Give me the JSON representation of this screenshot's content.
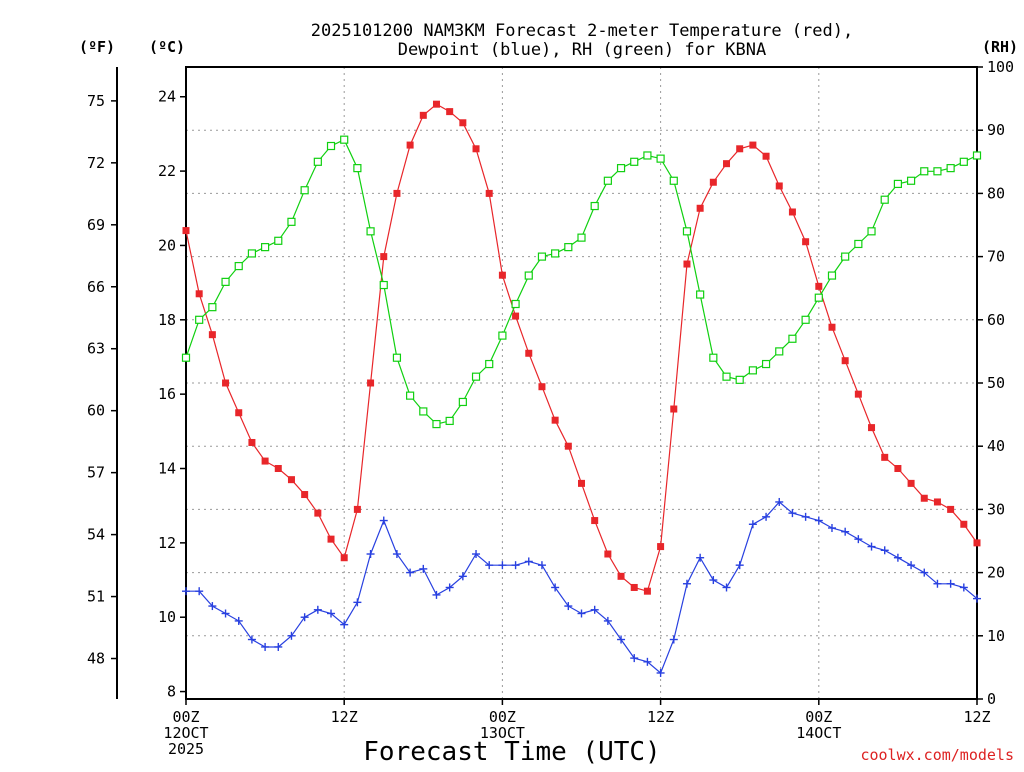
{
  "title": {
    "line1": "2025101200 NAM3KM Forecast 2-meter Temperature (red),",
    "line2": "Dewpoint (blue), RH (green) for KBNA"
  },
  "units": {
    "fahrenheit": "(ºF)",
    "celsius": "(ºC)",
    "rh": "(RH)"
  },
  "x_axis": {
    "title": "Forecast Time (UTC)",
    "ticks": [
      {
        "l1": "00Z",
        "l2": "12OCT",
        "l3": "2025"
      },
      {
        "l1": "12Z",
        "l2": "",
        "l3": ""
      },
      {
        "l1": "00Z",
        "l2": "13OCT",
        "l3": ""
      },
      {
        "l1": "12Z",
        "l2": "",
        "l3": ""
      },
      {
        "l1": "00Z",
        "l2": "14OCT",
        "l3": ""
      },
      {
        "l1": "12Z",
        "l2": "",
        "l3": ""
      }
    ]
  },
  "credit": "coolwx.com/models",
  "colors": {
    "temperature": "#e8262a",
    "dewpoint": "#2840e0",
    "rh": "#10d010"
  },
  "chart_data": {
    "type": "line",
    "x_hours": [
      0,
      1,
      2,
      3,
      4,
      5,
      6,
      7,
      8,
      9,
      10,
      11,
      12,
      13,
      14,
      15,
      16,
      17,
      18,
      19,
      20,
      21,
      22,
      23,
      24,
      25,
      26,
      27,
      28,
      29,
      30,
      31,
      32,
      33,
      34,
      35,
      36,
      37,
      38,
      39,
      40,
      41,
      42,
      43,
      44,
      45,
      46,
      47,
      48,
      49,
      50,
      51,
      52,
      53,
      54,
      55,
      56,
      57,
      58,
      59,
      60
    ],
    "xlim": [
      0,
      60
    ],
    "series": [
      {
        "name": "Temperature",
        "units": "C",
        "axis": "left_celsius",
        "values": [
          20.4,
          18.7,
          17.6,
          16.3,
          15.5,
          14.7,
          14.2,
          14.0,
          13.7,
          13.3,
          12.8,
          12.1,
          11.6,
          12.9,
          16.3,
          19.7,
          21.4,
          22.7,
          23.5,
          23.8,
          23.6,
          23.3,
          22.6,
          21.4,
          19.2,
          18.1,
          17.1,
          16.2,
          15.3,
          14.6,
          13.6,
          12.6,
          11.7,
          11.1,
          10.8,
          10.7,
          11.9,
          15.6,
          19.5,
          21.0,
          21.7,
          22.2,
          22.6,
          22.7,
          22.4,
          21.6,
          20.9,
          20.1,
          18.9,
          17.8,
          16.9,
          16.0,
          15.1,
          14.3,
          14.0,
          13.6,
          13.2,
          13.1,
          12.9,
          12.5,
          12.0
        ]
      },
      {
        "name": "Dewpoint",
        "units": "C",
        "axis": "left_celsius",
        "values": [
          10.7,
          10.7,
          10.3,
          10.1,
          9.9,
          9.4,
          9.2,
          9.2,
          9.5,
          10.0,
          10.2,
          10.1,
          9.8,
          10.4,
          11.7,
          12.6,
          11.7,
          11.2,
          11.3,
          10.6,
          10.8,
          11.1,
          11.7,
          11.4,
          11.4,
          11.4,
          11.5,
          11.4,
          10.8,
          10.3,
          10.1,
          10.2,
          9.9,
          9.4,
          8.9,
          8.8,
          8.5,
          9.4,
          10.9,
          11.6,
          11.0,
          10.8,
          11.4,
          12.5,
          12.7,
          13.1,
          12.8,
          12.7,
          12.6,
          12.4,
          12.3,
          12.1,
          11.9,
          11.8,
          11.6,
          11.4,
          11.2,
          10.9,
          10.9,
          10.8,
          10.5
        ]
      },
      {
        "name": "RH",
        "units": "%",
        "axis": "right_rh",
        "values": [
          54,
          60,
          62,
          66,
          68.5,
          70.5,
          71.5,
          72.5,
          75.5,
          80.5,
          85,
          87.5,
          88.5,
          84,
          74,
          65.5,
          54,
          48,
          45.5,
          43.5,
          44,
          47,
          51,
          53,
          57.5,
          62.5,
          67,
          70,
          70.5,
          71.5,
          73,
          78,
          82,
          84,
          85,
          86,
          85.5,
          82,
          74,
          64,
          54,
          51,
          50.5,
          52,
          53,
          55,
          57,
          60,
          63.5,
          67,
          70,
          72,
          74,
          79,
          81.5,
          82,
          83.5,
          83.5,
          84,
          85,
          86
        ]
      }
    ],
    "left_axis_celsius": {
      "label": "(ºC)",
      "ticks": [
        8,
        10,
        12,
        14,
        16,
        18,
        20,
        22,
        24
      ],
      "ylim": [
        7.8,
        24.8
      ]
    },
    "left_axis_fahrenheit": {
      "label": "(ºF)",
      "ticks": [
        48,
        51,
        54,
        57,
        60,
        63,
        66,
        69,
        72,
        75
      ]
    },
    "right_axis_rh": {
      "label": "(RH)",
      "ticks": [
        0,
        10,
        20,
        30,
        40,
        50,
        60,
        70,
        80,
        90,
        100
      ],
      "ylim": [
        0,
        100
      ]
    }
  }
}
